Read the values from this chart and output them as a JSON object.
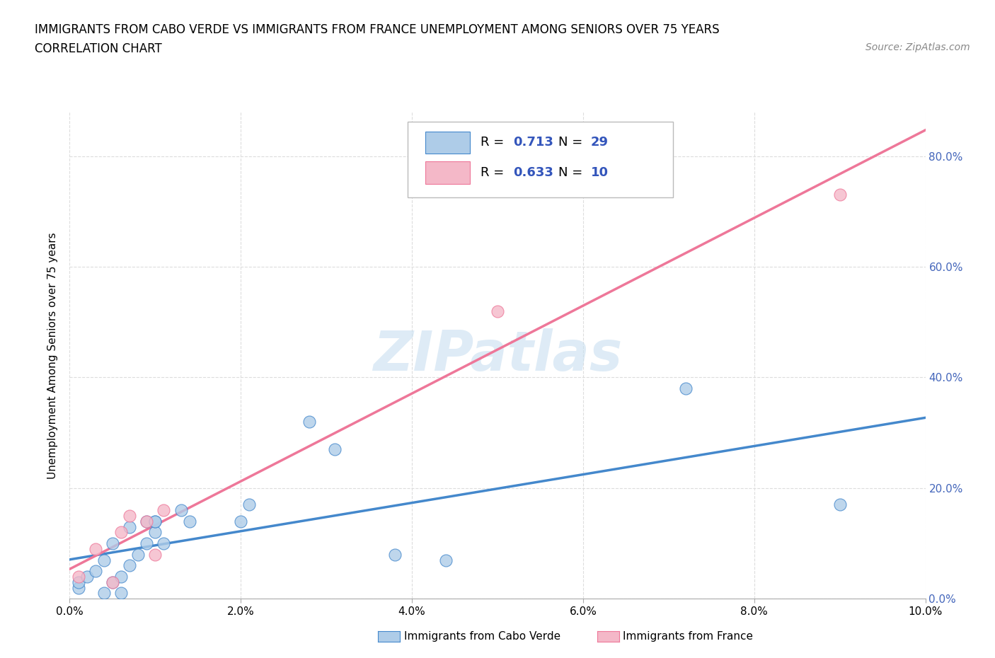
{
  "title_line1": "IMMIGRANTS FROM CABO VERDE VS IMMIGRANTS FROM FRANCE UNEMPLOYMENT AMONG SENIORS OVER 75 YEARS",
  "title_line2": "CORRELATION CHART",
  "source": "Source: ZipAtlas.com",
  "ylabel": "Unemployment Among Seniors over 75 years",
  "cabo_verde_color": "#aecce8",
  "france_color": "#f4b8c8",
  "cabo_verde_line_color": "#4488cc",
  "france_line_color": "#ee7799",
  "cabo_verde_R": "0.713",
  "cabo_verde_N": "29",
  "france_R": "0.633",
  "france_N": "10",
  "legend_label_1": "Immigrants from Cabo Verde",
  "legend_label_2": "Immigrants from France",
  "watermark": "ZIPatlas",
  "cabo_verde_x": [
    0.001,
    0.001,
    0.002,
    0.003,
    0.004,
    0.004,
    0.005,
    0.005,
    0.006,
    0.006,
    0.007,
    0.007,
    0.008,
    0.009,
    0.009,
    0.01,
    0.01,
    0.01,
    0.011,
    0.013,
    0.014,
    0.02,
    0.021,
    0.028,
    0.031,
    0.038,
    0.044,
    0.072,
    0.09
  ],
  "cabo_verde_y": [
    0.02,
    0.03,
    0.04,
    0.05,
    0.01,
    0.07,
    0.03,
    0.1,
    0.01,
    0.04,
    0.06,
    0.13,
    0.08,
    0.1,
    0.14,
    0.12,
    0.14,
    0.14,
    0.1,
    0.16,
    0.14,
    0.14,
    0.17,
    0.32,
    0.27,
    0.08,
    0.07,
    0.38,
    0.17
  ],
  "france_x": [
    0.001,
    0.003,
    0.005,
    0.006,
    0.007,
    0.009,
    0.01,
    0.011,
    0.05,
    0.09
  ],
  "france_y": [
    0.04,
    0.09,
    0.03,
    0.12,
    0.15,
    0.14,
    0.08,
    0.16,
    0.52,
    0.73
  ],
  "xlim": [
    0.0,
    0.1
  ],
  "ylim": [
    0.0,
    0.88
  ],
  "x_ticks": [
    0.0,
    0.02,
    0.04,
    0.06,
    0.08,
    0.1
  ],
  "y_ticks": [
    0.0,
    0.2,
    0.4,
    0.6,
    0.8
  ],
  "background_color": "#ffffff",
  "grid_color": "#dddddd",
  "right_tick_color": "#4466bb",
  "annotation_color": "#3355bb"
}
